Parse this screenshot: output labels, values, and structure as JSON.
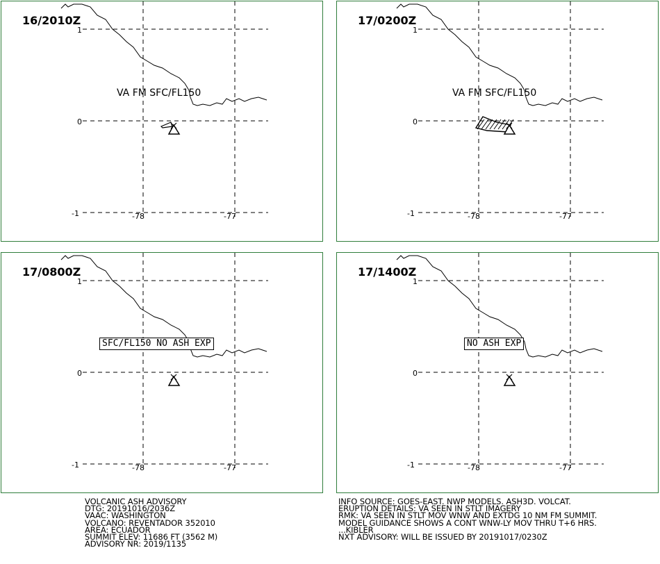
{
  "panels": [
    {
      "time": "16/2010Z",
      "label": "VA FM SFC/FL150",
      "label_boxed": false,
      "ash_area": "small"
    },
    {
      "time": "17/0200Z",
      "label": "VA FM SFC/FL150",
      "label_boxed": false,
      "ash_area": "hatched"
    },
    {
      "time": "17/0800Z",
      "label": "SFC/FL150 NO ASH EXP",
      "label_boxed": true,
      "ash_area": "none"
    },
    {
      "time": "17/1400Z",
      "label": "NO ASH EXP",
      "label_boxed": true,
      "ash_area": "none"
    }
  ],
  "map": {
    "lat_labels": [
      "1",
      "0",
      "-1"
    ],
    "lon_labels": [
      "-78",
      "-77"
    ],
    "frame_color": "#2f7d3a",
    "line_color": "#000000",
    "volcano_icon": "volcano-triangle-icon"
  },
  "advisory_left": [
    "VOLCANIC ASH ADVISORY",
    "DTG: 20191016/2036Z",
    "VAAC: WASHINGTON",
    "VOLCANO: REVENTADOR 352010",
    "AREA: ECUADOR",
    "SUMMIT ELEV: 11686 FT (3562 M)",
    "ADVISORY NR: 2019/1135"
  ],
  "advisory_right": [
    "INFO SOURCE: GOES-EAST. NWP MODELS. ASH3D. VOLCAT.",
    "ERUPTION DETAILS: VA SEEN IN STLT IMAGERY",
    "RMK: VA SEEN IN STLT MOV WNW AND EXTDG 10 NM FM SUMMIT.",
    "MODEL GUIDANCE SHOWS A CONT WNW-LY MOV THRU T+6 HRS.",
    "...KIBLER",
    "NXT ADVISORY: WILL BE ISSUED BY 20191017/0230Z"
  ]
}
